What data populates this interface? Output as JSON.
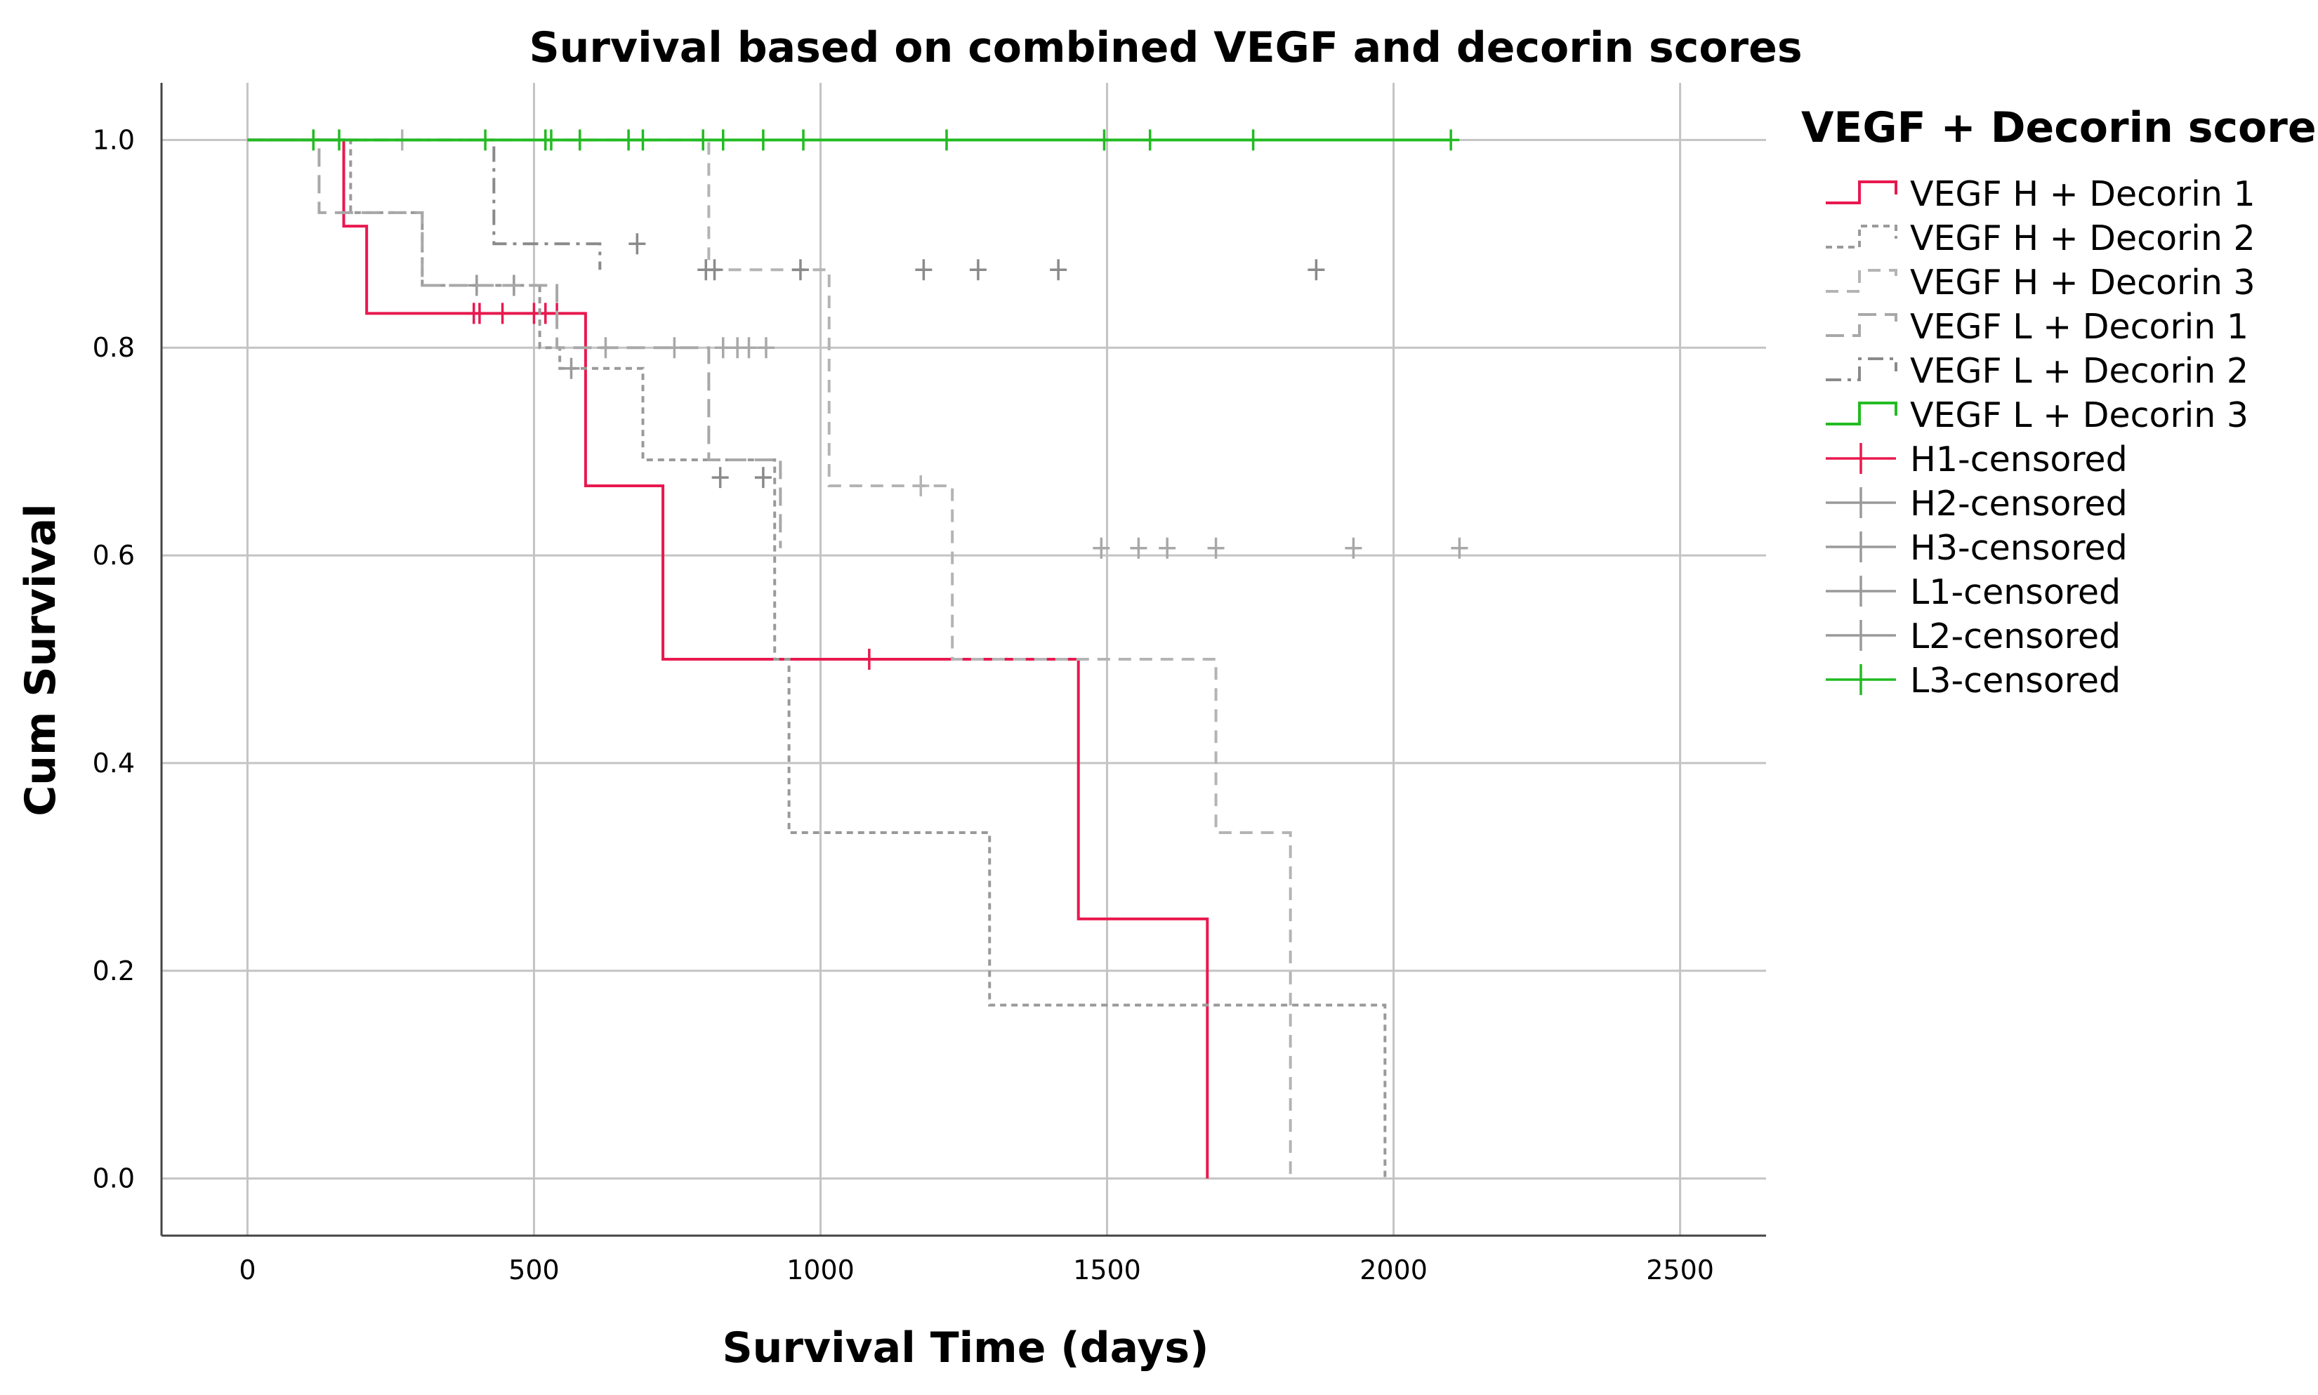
{
  "chart_data": {
    "type": "line",
    "subtype": "kaplan-meier",
    "title": "Survival based on combined VEGF and decorin scores",
    "xlabel": "Survival Time (days)",
    "ylabel": "Cum Survival",
    "xlim": [
      -150,
      2650
    ],
    "ylim": [
      -0.055,
      1.055
    ],
    "xticks": [
      0,
      500,
      1000,
      1500,
      2000,
      2500
    ],
    "xtick_labels": [
      "0",
      "500",
      "1000",
      "1500",
      "2000",
      "2500"
    ],
    "yticks": [
      0.0,
      0.2,
      0.4,
      0.6,
      0.8,
      1.0
    ],
    "ytick_labels": [
      "0.0",
      "0.2",
      "0.4",
      "0.6",
      "0.8",
      "1.0"
    ],
    "grid": true,
    "legend_title": "VEGF + Decorin score",
    "legend_position": "right",
    "series": [
      {
        "name": "VEGF H + Decorin 1",
        "color": "#e8194f",
        "dash": "solid",
        "steps": [
          [
            0,
            1.0
          ],
          [
            168,
            0.917
          ],
          [
            208,
            0.833
          ],
          [
            590,
            0.667
          ],
          [
            725,
            0.5
          ],
          [
            1450,
            0.25
          ],
          [
            1675,
            0.0
          ]
        ],
        "censored": [
          [
            395,
            0.833
          ],
          [
            405,
            0.833
          ],
          [
            445,
            0.833
          ],
          [
            500,
            0.833
          ],
          [
            520,
            0.833
          ],
          [
            540,
            0.833
          ],
          [
            1085,
            0.5
          ]
        ]
      },
      {
        "name": "VEGF H + Decorin 2",
        "color": "#9a9a9a",
        "dash": "dotted",
        "steps": [
          [
            0,
            1.0
          ],
          [
            180,
            0.93
          ],
          [
            305,
            0.86
          ],
          [
            510,
            0.8
          ],
          [
            545,
            0.78
          ],
          [
            690,
            0.692
          ],
          [
            920,
            0.5
          ],
          [
            945,
            0.333
          ],
          [
            1295,
            0.167
          ],
          [
            1985,
            0.0
          ]
        ],
        "censored": [
          [
            400,
            0.86
          ],
          [
            465,
            0.86
          ],
          [
            565,
            0.78
          ]
        ]
      },
      {
        "name": "VEGF H + Decorin 3",
        "color": "#b4b4b4",
        "dash": "dashed",
        "steps": [
          [
            0,
            1.0
          ],
          [
            805,
            0.875
          ],
          [
            1015,
            0.667
          ],
          [
            1230,
            0.5
          ],
          [
            1690,
            0.333
          ],
          [
            1820,
            0.0
          ]
        ],
        "censored": [
          [
            270,
            1.0
          ],
          [
            1175,
            0.667
          ]
        ]
      },
      {
        "name": "VEGF L + Decorin 1",
        "color": "#a8a8a8",
        "dash": "longdash",
        "steps": [
          [
            0,
            1.0
          ],
          [
            125,
            0.93
          ],
          [
            305,
            0.86
          ],
          [
            365,
            0.86
          ],
          [
            430,
            0.86
          ],
          [
            540,
            0.8
          ],
          [
            805,
            0.692
          ],
          [
            930,
            0.607
          ]
        ],
        "censored": [
          [
            625,
            0.8
          ],
          [
            745,
            0.8
          ],
          [
            830,
            0.8
          ],
          [
            855,
            0.8
          ],
          [
            875,
            0.8
          ],
          [
            905,
            0.8
          ],
          [
            1490,
            0.607
          ],
          [
            1555,
            0.607
          ],
          [
            1605,
            0.607
          ],
          [
            1690,
            0.607
          ],
          [
            1930,
            0.607
          ],
          [
            2115,
            0.607
          ]
        ]
      },
      {
        "name": "VEGF L + Decorin 2",
        "color": "#8a8a8a",
        "dash": "dashdot",
        "steps": [
          [
            0,
            1.0
          ],
          [
            430,
            0.9
          ],
          [
            615,
            0.875
          ]
        ],
        "censored": [
          [
            680,
            0.9
          ],
          [
            800,
            0.875
          ],
          [
            815,
            0.875
          ],
          [
            965,
            0.875
          ],
          [
            1180,
            0.875
          ],
          [
            1275,
            0.875
          ],
          [
            1415,
            0.875
          ],
          [
            1865,
            0.875
          ],
          [
            825,
            0.675
          ],
          [
            900,
            0.675
          ]
        ]
      },
      {
        "name": "VEGF L + Decorin 3",
        "color": "#22bb22",
        "dash": "solid",
        "steps": [
          [
            0,
            1.0
          ],
          [
            2100,
            1.0
          ]
        ],
        "censored": [
          [
            115,
            1.0
          ],
          [
            160,
            1.0
          ],
          [
            415,
            1.0
          ],
          [
            520,
            1.0
          ],
          [
            530,
            1.0
          ],
          [
            580,
            1.0
          ],
          [
            665,
            1.0
          ],
          [
            690,
            1.0
          ],
          [
            795,
            1.0
          ],
          [
            830,
            1.0
          ],
          [
            900,
            1.0
          ],
          [
            970,
            1.0
          ],
          [
            1220,
            1.0
          ],
          [
            1495,
            1.0
          ],
          [
            1575,
            1.0
          ],
          [
            1755,
            1.0
          ],
          [
            2100,
            1.0
          ]
        ]
      }
    ],
    "legend_censor_entries": [
      {
        "name": "H1-censored",
        "color": "#e8194f"
      },
      {
        "name": "H2-censored",
        "color": "#9a9a9a"
      },
      {
        "name": "H3-censored",
        "color": "#9a9a9a"
      },
      {
        "name": "L1-censored",
        "color": "#9a9a9a"
      },
      {
        "name": "L2-censored",
        "color": "#9a9a9a"
      },
      {
        "name": "L3-censored",
        "color": "#22bb22"
      }
    ]
  }
}
